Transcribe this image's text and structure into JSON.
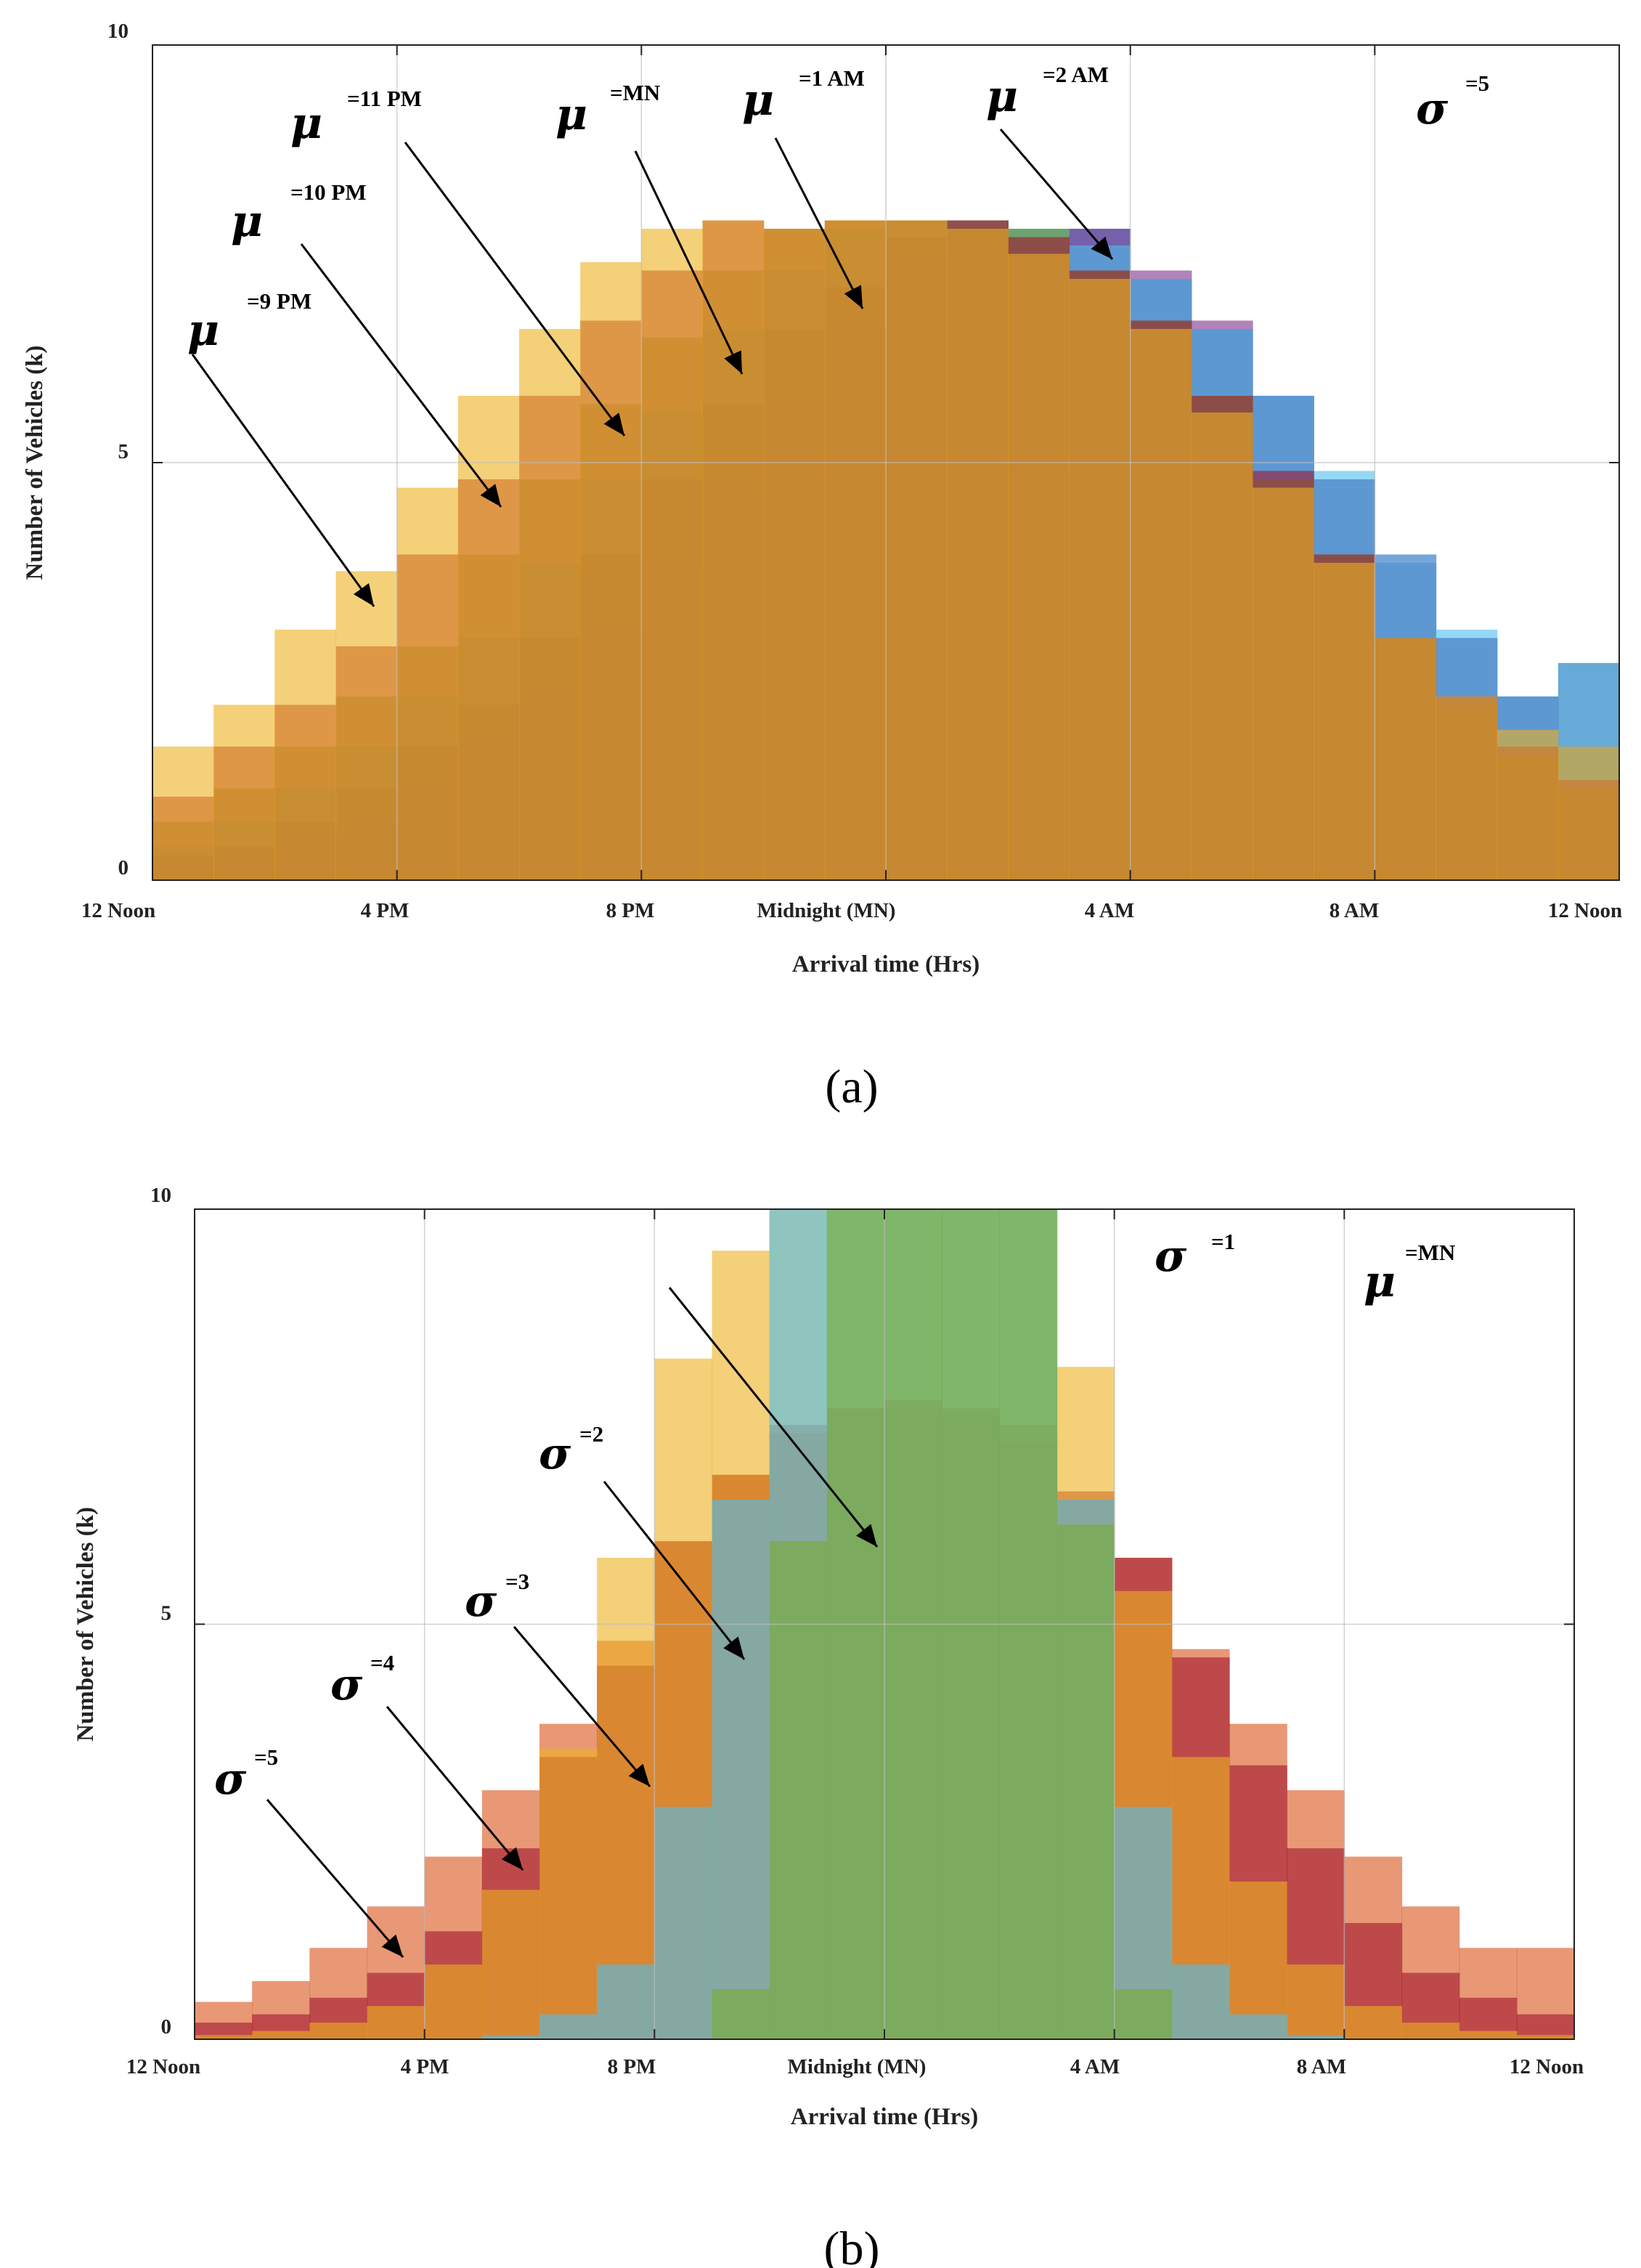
{
  "chart_data": [
    {
      "panel": "(a)",
      "type": "bar",
      "histogram": true,
      "x_tick_labels": [
        "12 Noon",
        "4 PM",
        "8 PM",
        "Midnight (MN)",
        "4 AM",
        "8 AM",
        "12 Noon"
      ],
      "xlabel": "Arrival time (Hrs)",
      "ylabel": "Number of Vehicles (k)",
      "ylim": [
        0,
        10
      ],
      "y_ticks": [
        0,
        5,
        10
      ],
      "grid": true,
      "bins": 24,
      "bin_width_hours": 1,
      "fixed_parameter": {
        "symbol": "σ",
        "sup": "=5"
      },
      "series": [
        {
          "symbol": "μ",
          "sup": "=9 PM",
          "color": "#EDB120",
          "values": [
            1.6,
            2.1,
            3.0,
            3.7,
            4.7,
            5.8,
            6.6,
            7.4,
            7.8,
            7.9,
            7.8,
            7.9,
            7.9,
            7.8,
            7.5,
            7.2,
            6.6,
            5.6,
            4.7,
            3.8,
            2.9,
            2.2,
            1.8,
            1.6
          ]
        },
        {
          "symbol": "μ",
          "sup": "=10 PM",
          "color": "#A2142F",
          "values": [
            1.0,
            1.6,
            2.1,
            2.8,
            3.9,
            4.8,
            5.8,
            6.7,
            7.3,
            7.9,
            7.8,
            7.9,
            7.9,
            7.9,
            7.7,
            7.3,
            6.7,
            5.8,
            4.9,
            3.9,
            2.9,
            2.2,
            1.6,
            1.2
          ]
        },
        {
          "symbol": "μ",
          "sup": "=11 PM",
          "color": "#77AC30",
          "values": [
            0.7,
            1.1,
            1.6,
            2.2,
            2.8,
            3.9,
            4.8,
            5.7,
            6.5,
            7.3,
            7.8,
            7.9,
            7.9,
            7.9,
            7.8,
            7.3,
            6.7,
            5.8,
            4.8,
            3.9,
            2.9,
            2.1,
            1.5,
            1.1
          ]
        },
        {
          "symbol": "μ",
          "sup": "=MN",
          "color": "#4DBEEE",
          "values": [
            0.4,
            0.7,
            1.1,
            1.6,
            2.2,
            2.9,
            3.8,
            4.8,
            5.6,
            6.6,
            7.3,
            7.8,
            7.9,
            7.9,
            7.8,
            7.6,
            7.2,
            6.6,
            5.8,
            4.9,
            3.9,
            3.0,
            2.2,
            1.6
          ]
        },
        {
          "symbol": "μ",
          "sup": "=1 AM",
          "color": "#7E2F8E",
          "values": [
            0.3,
            0.4,
            0.7,
            1.1,
            1.6,
            2.1,
            2.9,
            3.9,
            4.8,
            5.7,
            6.6,
            7.1,
            7.7,
            7.9,
            7.8,
            7.8,
            7.3,
            6.7,
            5.8,
            4.8,
            3.9,
            2.9,
            2.2,
            1.6
          ]
        },
        {
          "symbol": "μ",
          "sup": "=2 AM",
          "color": "#0072BD",
          "values": [
            0.2,
            0.3,
            0.5,
            0.7,
            1.1,
            1.6,
            2.2,
            3.0,
            3.8,
            4.7,
            5.7,
            6.6,
            7.4,
            7.7,
            7.8,
            7.8,
            7.2,
            6.6,
            5.8,
            4.8,
            3.8,
            2.9,
            2.2,
            2.6
          ]
        }
      ]
    },
    {
      "panel": "(b)",
      "type": "bar",
      "histogram": true,
      "x_tick_labels": [
        "12 Noon",
        "4 PM",
        "8 PM",
        "Midnight (MN)",
        "4 AM",
        "8 AM",
        "12 Noon"
      ],
      "xlabel": "Arrival time (Hrs)",
      "ylabel": "Number of Vehicles (k)",
      "ylim": [
        0,
        10
      ],
      "y_ticks": [
        0,
        5,
        10
      ],
      "grid": true,
      "bins": 24,
      "bin_width_hours": 1,
      "fixed_parameter": {
        "symbol": "μ",
        "sup": "=MN"
      },
      "series": [
        {
          "symbol": "σ",
          "sup": "=1",
          "color": "#77AC30",
          "values": [
            0,
            0,
            0,
            0,
            0,
            0,
            0,
            0,
            0,
            0.6,
            6.0,
            10.0,
            10.0,
            10.0,
            10.0,
            6.2,
            0.6,
            0,
            0,
            0,
            0,
            0,
            0,
            0
          ]
        },
        {
          "symbol": "σ",
          "sup": "=2",
          "color": "#4DBEEE",
          "values": [
            0,
            0,
            0,
            0,
            0,
            0.05,
            0.3,
            0.9,
            2.8,
            6.5,
            10.0,
            10.0,
            10.0,
            10.0,
            10.0,
            6.5,
            2.8,
            0.9,
            0.3,
            0.05,
            0,
            0,
            0,
            0
          ]
        },
        {
          "symbol": "σ",
          "sup": "=3",
          "color": "#EDB120",
          "values": [
            0.05,
            0.1,
            0.2,
            0.4,
            0.9,
            1.8,
            3.5,
            5.8,
            8.2,
            9.5,
            10.0,
            10.0,
            10.0,
            10.0,
            10.0,
            8.1,
            5.4,
            3.4,
            1.9,
            0.9,
            0.4,
            0.2,
            0.1,
            0.05
          ]
        },
        {
          "symbol": "σ",
          "sup": "=4",
          "color": "#A2142F",
          "values": [
            0.2,
            0.3,
            0.5,
            0.8,
            1.3,
            2.3,
            3.4,
            4.5,
            6.0,
            6.8,
            7.4,
            7.6,
            7.7,
            7.6,
            7.4,
            6.6,
            5.8,
            4.6,
            3.3,
            2.3,
            1.4,
            0.8,
            0.5,
            0.3
          ]
        },
        {
          "symbol": "σ",
          "sup": "=5",
          "color": "#D95319",
          "values": [
            0.45,
            0.7,
            1.1,
            1.6,
            2.2,
            3.0,
            3.8,
            4.8,
            6.0,
            6.8,
            7.3,
            7.6,
            7.6,
            7.5,
            7.2,
            6.5,
            5.8,
            4.7,
            3.8,
            3.0,
            2.2,
            1.6,
            1.1,
            1.1
          ]
        }
      ]
    }
  ],
  "panel_labels": [
    "(a)",
    "(b)"
  ]
}
